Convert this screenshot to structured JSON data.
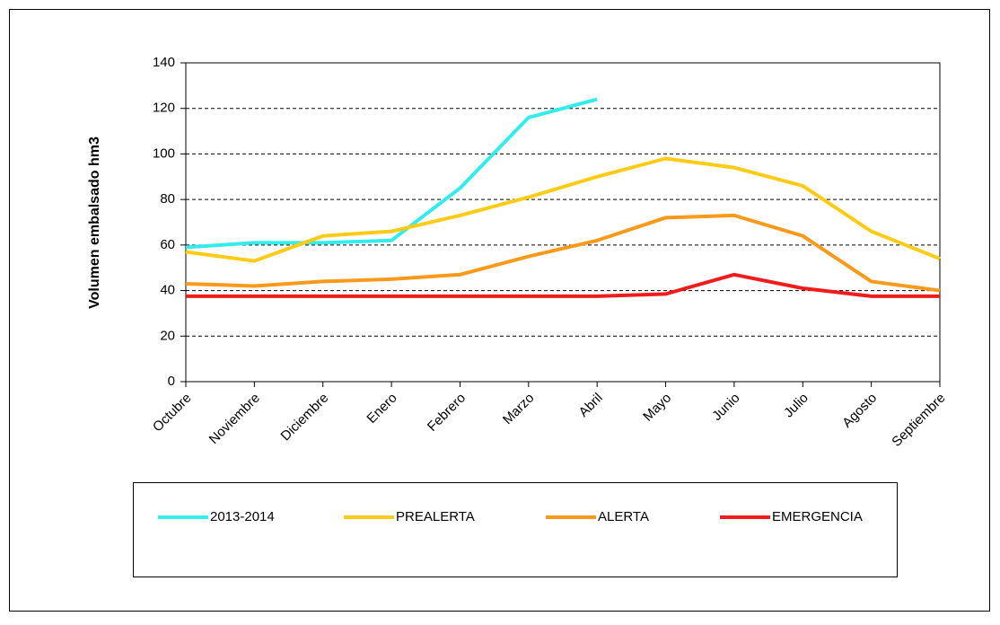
{
  "chart_data": {
    "type": "line",
    "y_label": "Volumen embalsado hm3",
    "categories": [
      "Octubre",
      "Noviembre",
      "Diciembre",
      "Enero",
      "Febrero",
      "Marzo",
      "Abril",
      "Mayo",
      "Junio",
      "Julio",
      "Agosto",
      "Septiembre"
    ],
    "series": [
      {
        "name": "2013-2014",
        "color": "#33ecec",
        "values": [
          59,
          61,
          61,
          62,
          85,
          116,
          124,
          null,
          null,
          null,
          null,
          null
        ]
      },
      {
        "name": "PREALERTA",
        "color": "#fecb16",
        "values": [
          57,
          53,
          64,
          66,
          73,
          81,
          90,
          98,
          94,
          86,
          66,
          54
        ]
      },
      {
        "name": "ALERTA",
        "color": "#f99a1c",
        "values": [
          43,
          42,
          44,
          45,
          47,
          55,
          62,
          72,
          73,
          64,
          44,
          40
        ]
      },
      {
        "name": "EMERGENCIA",
        "color": "#ee1c1c",
        "values": [
          37.5,
          37.5,
          37.5,
          37.5,
          37.5,
          37.5,
          37.5,
          38.5,
          47,
          41,
          37.5,
          37.5
        ]
      }
    ],
    "ylim": [
      0,
      140
    ],
    "yticks": [
      0,
      20,
      40,
      60,
      80,
      100,
      120,
      140
    ],
    "grid": true,
    "legend": "bottom"
  }
}
